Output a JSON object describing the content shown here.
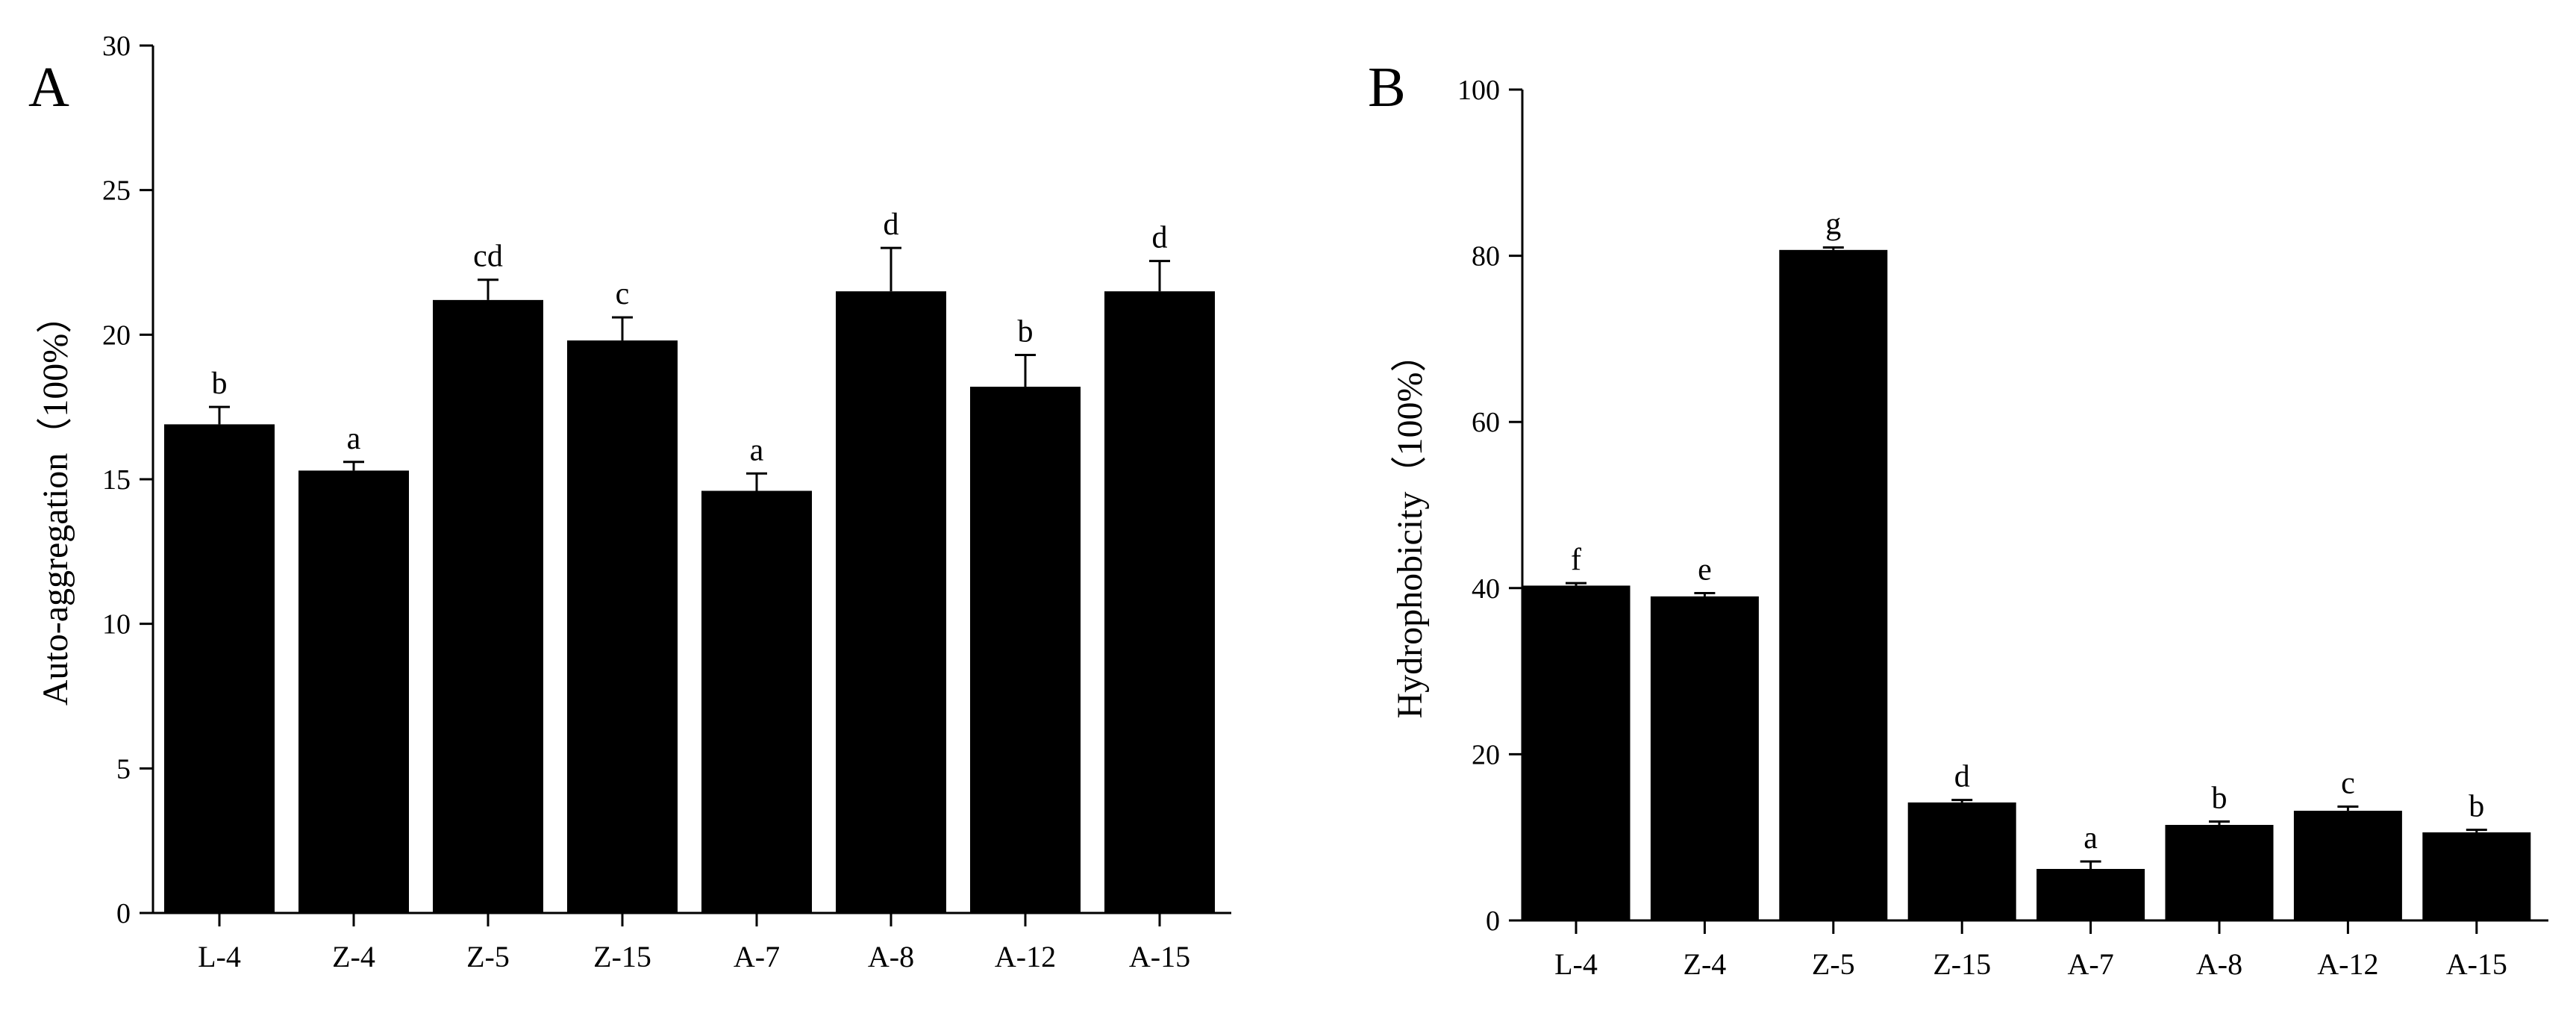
{
  "chart_data": [
    {
      "type": "bar",
      "panel": "A",
      "categories": [
        "L-4",
        "Z-4",
        "Z-5",
        "Z-15",
        "A-7",
        "A-8",
        "A-12",
        "A-15"
      ],
      "values": [
        16.9,
        15.3,
        21.2,
        19.8,
        14.6,
        21.5,
        18.2,
        21.5
      ],
      "errors": [
        0.6,
        0.3,
        0.7,
        0.8,
        0.6,
        1.5,
        1.1,
        1.05
      ],
      "significance": [
        "b",
        "a",
        "cd",
        "c",
        "a",
        "d",
        "b",
        "d"
      ],
      "title": "",
      "xlabel": "",
      "ylabel": "Auto-aggregation（100%）",
      "ylim": [
        0,
        30
      ],
      "yticks": [
        0,
        5,
        10,
        15,
        20,
        25,
        30
      ],
      "color": "#000000",
      "grid": false
    },
    {
      "type": "bar",
      "panel": "B",
      "categories": [
        "L-4",
        "Z-4",
        "Z-5",
        "Z-15",
        "A-7",
        "A-8",
        "A-12",
        "A-15"
      ],
      "values": [
        40.3,
        39.0,
        80.7,
        14.2,
        6.2,
        11.5,
        13.2,
        10.6
      ],
      "errors": [
        0.3,
        0.4,
        0.3,
        0.3,
        0.9,
        0.4,
        0.5,
        0.3
      ],
      "significance": [
        "f",
        "e",
        "g",
        "d",
        "a",
        "b",
        "c",
        "b"
      ],
      "title": "",
      "xlabel": "",
      "ylabel": "Hydrophobicity（100%）",
      "ylim": [
        0,
        100
      ],
      "yticks": [
        0,
        20,
        40,
        60,
        80,
        100
      ],
      "color": "#000000",
      "grid": false
    }
  ]
}
